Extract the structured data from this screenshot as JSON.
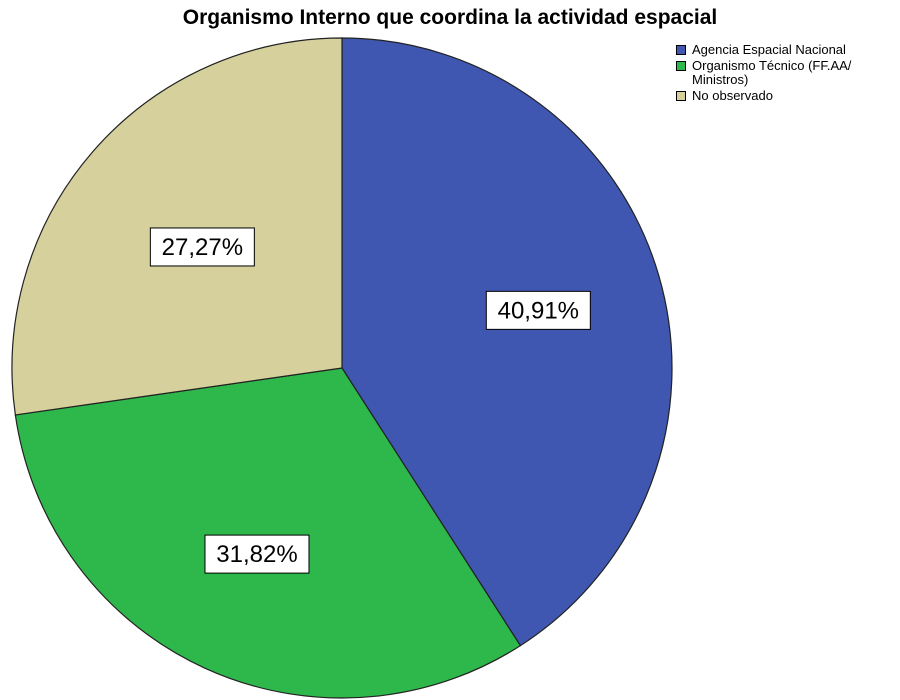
{
  "chart_data": {
    "type": "pie",
    "title": "Organismo Interno que coordina la actividad espacial",
    "categories": [
      "Agencia Espacial Nacional",
      "Organismo Técnico (FF.AA/ Ministros)",
      "No observado"
    ],
    "legend_labels": [
      [
        "Agencia Espacial Nacional"
      ],
      [
        "Organismo Técnico (FF.AA/",
        "Ministros)"
      ],
      [
        "No observado"
      ]
    ],
    "values": [
      40.91,
      31.82,
      27.27
    ],
    "data_labels": [
      "40,91%",
      "31,82%",
      "27,27%"
    ],
    "colors": [
      "#3f57b0",
      "#2eb84c",
      "#d6d09c"
    ],
    "start_angle_deg": 0,
    "direction": "clockwise",
    "legend_position": "top-right"
  }
}
